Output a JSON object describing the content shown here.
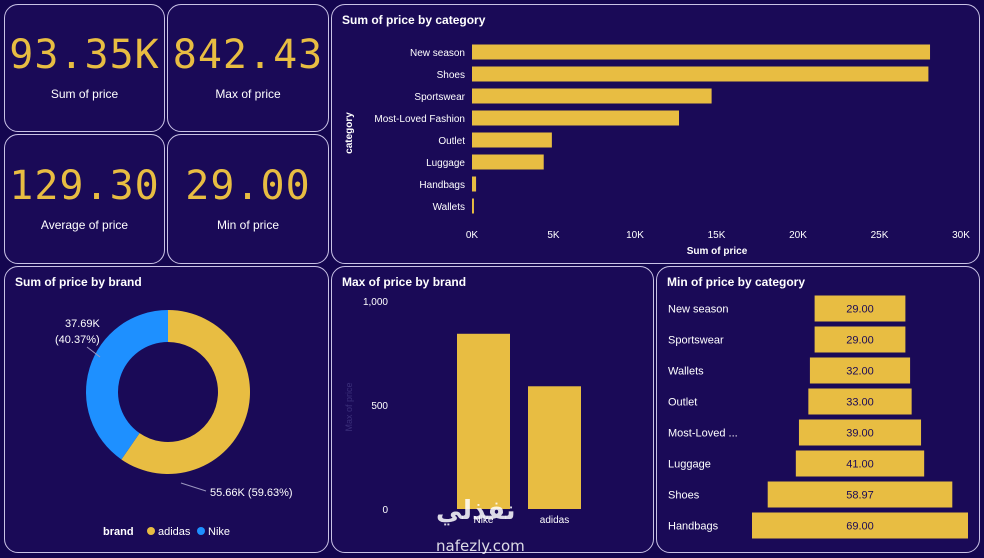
{
  "colors": {
    "background": "#14064f",
    "tile": "#1a0a57",
    "accent": "#e8bd42",
    "nike": "#1e90ff",
    "border": "#c9c2e6"
  },
  "kpis": [
    {
      "value": "93.35K",
      "label": "Sum of price"
    },
    {
      "value": "842.43",
      "label": "Max of price"
    },
    {
      "value": "129.30",
      "label": "Average of price"
    },
    {
      "value": "29.00",
      "label": "Min of price"
    }
  ],
  "watermark": {
    "text": "nafezly.com",
    "logo": "نفذلي"
  },
  "chart_data": [
    {
      "type": "bar",
      "orientation": "horizontal",
      "title": "Sum of price by category",
      "xlabel": "Sum of price",
      "ylabel": "category",
      "categories": [
        "New season",
        "Shoes",
        "Sportswear",
        "Most-Loved Fashion",
        "Outlet",
        "Luggage",
        "Handbags",
        "Wallets"
      ],
      "values": [
        28100,
        28000,
        14700,
        12700,
        4900,
        4400,
        250,
        120
      ],
      "xlim": [
        0,
        30000
      ],
      "ticks": [
        "0K",
        "5K",
        "10K",
        "15K",
        "20K",
        "25K",
        "30K"
      ],
      "color": "#e8bd42"
    },
    {
      "type": "pie",
      "variant": "donut",
      "title": "Sum of price by brand",
      "legend_title": "brand",
      "legend_position": "bottom",
      "series": [
        {
          "name": "adidas",
          "value": 55660,
          "label": "55.66K (59.63%)",
          "color": "#e8bd42"
        },
        {
          "name": "Nike",
          "value": 37690,
          "label_line1": "37.69K",
          "label_line2": "(40.37%)",
          "color": "#1e90ff"
        }
      ]
    },
    {
      "type": "bar",
      "title": "Max of price by brand",
      "ylabel": "Max of price",
      "categories": [
        "Nike",
        "adidas"
      ],
      "values": [
        842.43,
        590
      ],
      "ylim": [
        0,
        1000
      ],
      "ticks": [
        "0",
        "500",
        "1,000"
      ],
      "color": "#e8bd42"
    },
    {
      "type": "bar",
      "variant": "funnel",
      "title": "Min of price by category",
      "categories": [
        "New season",
        "Sportswear",
        "Wallets",
        "Outlet",
        "Most-Loved ...",
        "Luggage",
        "Shoes",
        "Handbags"
      ],
      "values": [
        29.0,
        29.0,
        32.0,
        33.0,
        39.0,
        41.0,
        58.97,
        69.0
      ],
      "labels": [
        "29.00",
        "29.00",
        "32.00",
        "33.00",
        "39.00",
        "41.00",
        "58.97",
        "69.00"
      ],
      "color": "#e8bd42"
    }
  ]
}
